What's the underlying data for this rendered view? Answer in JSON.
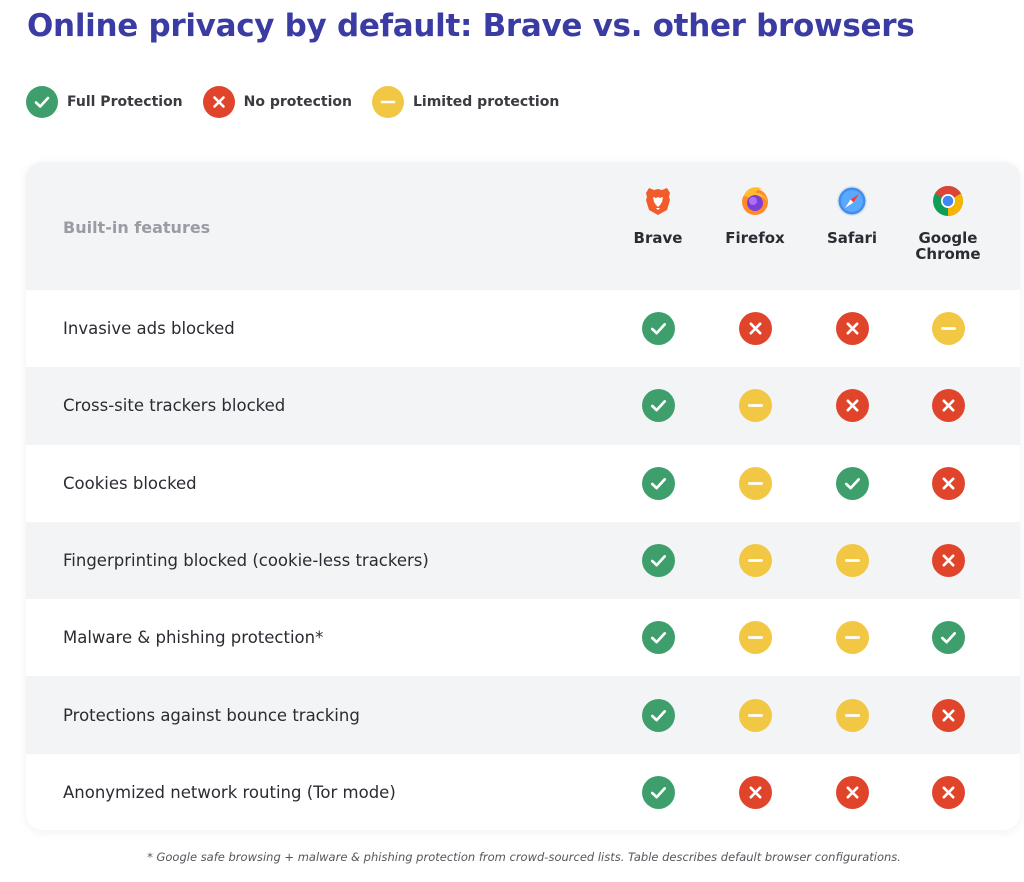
{
  "title": "Online privacy by default: Brave vs. other browsers",
  "legend": [
    {
      "status": "full",
      "label": "Full Protection"
    },
    {
      "status": "none",
      "label": "No protection"
    },
    {
      "status": "limited",
      "label": "Limited protection"
    }
  ],
  "colors": {
    "full": "#3f9f6c",
    "none": "#e0452b",
    "limited": "#f2c744",
    "title": "#3a3ba3"
  },
  "table": {
    "header_label": "Built-in features",
    "browsers": [
      {
        "name": "Brave",
        "icon": "brave-lion-icon"
      },
      {
        "name": "Firefox",
        "icon": "firefox-icon"
      },
      {
        "name": "Safari",
        "icon": "safari-compass-icon"
      },
      {
        "name": "Google Chrome",
        "icon": "chrome-icon"
      }
    ],
    "rows": [
      {
        "feature": "Invasive ads blocked",
        "values": [
          "full",
          "none",
          "none",
          "limited"
        ]
      },
      {
        "feature": "Cross-site trackers blocked",
        "values": [
          "full",
          "limited",
          "none",
          "none"
        ]
      },
      {
        "feature": "Cookies blocked",
        "values": [
          "full",
          "limited",
          "full",
          "none"
        ]
      },
      {
        "feature": "Fingerprinting blocked (cookie-less trackers)",
        "values": [
          "full",
          "limited",
          "limited",
          "none"
        ]
      },
      {
        "feature": "Malware & phishing protection*",
        "values": [
          "full",
          "limited",
          "limited",
          "full"
        ]
      },
      {
        "feature": "Protections against bounce tracking",
        "values": [
          "full",
          "limited",
          "limited",
          "none"
        ]
      },
      {
        "feature": "Anonymized network routing (Tor mode)",
        "values": [
          "full",
          "none",
          "none",
          "none"
        ]
      }
    ]
  },
  "footnote": "* Google safe browsing + malware & phishing protection from crowd-sourced lists. Table describes default browser configurations."
}
